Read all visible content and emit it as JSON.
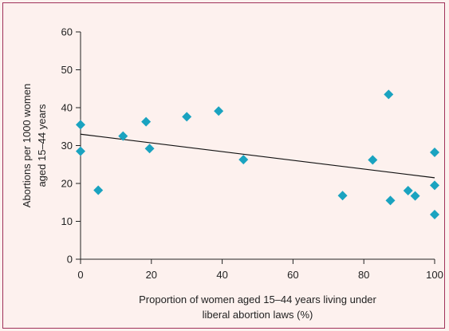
{
  "chart_data": {
    "type": "scatter",
    "xlabel": [
      "Proportion of women aged 15–44 years living under",
      "liberal abortion laws (%)"
    ],
    "ylabel": [
      "Abortions per 1000 women",
      "aged 15–44 years"
    ],
    "xlim": [
      0,
      100
    ],
    "ylim": [
      0,
      60
    ],
    "xticks": [
      0,
      20,
      40,
      60,
      80,
      100
    ],
    "yticks": [
      0,
      10,
      20,
      30,
      40,
      50,
      60
    ],
    "grid": false,
    "marker_color": "#1aa3c0",
    "points": [
      {
        "x": 0,
        "y": 35.5
      },
      {
        "x": 0,
        "y": 28.5
      },
      {
        "x": 5,
        "y": 18.2
      },
      {
        "x": 12,
        "y": 32.5
      },
      {
        "x": 18.5,
        "y": 36.3
      },
      {
        "x": 19.5,
        "y": 29.2
      },
      {
        "x": 30,
        "y": 37.6
      },
      {
        "x": 39,
        "y": 39.1
      },
      {
        "x": 46,
        "y": 26.3
      },
      {
        "x": 74,
        "y": 16.8
      },
      {
        "x": 82.5,
        "y": 26.2
      },
      {
        "x": 87,
        "y": 43.5
      },
      {
        "x": 87.5,
        "y": 15.5
      },
      {
        "x": 92.5,
        "y": 18.1
      },
      {
        "x": 94.5,
        "y": 16.7
      },
      {
        "x": 100,
        "y": 28.2
      },
      {
        "x": 100,
        "y": 19.5
      },
      {
        "x": 100,
        "y": 11.8
      }
    ],
    "trendline": {
      "x": [
        0,
        100
      ],
      "y": [
        33,
        21.5
      ]
    }
  }
}
